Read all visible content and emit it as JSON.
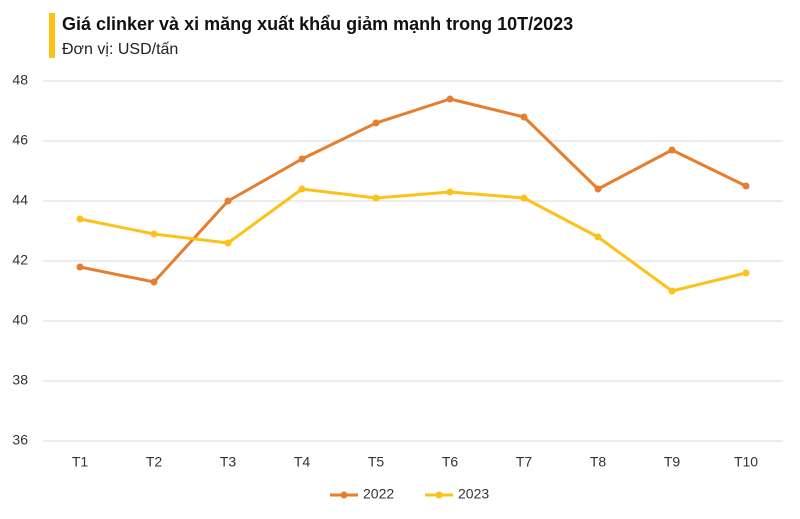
{
  "chart_data": {
    "type": "line",
    "title": "Giá clinker và xi măng xuất khẩu giảm mạnh trong 10T/2023",
    "subtitle": "Đơn vị: USD/tấn",
    "categories": [
      "T1",
      "T2",
      "T3",
      "T4",
      "T5",
      "T6",
      "T7",
      "T8",
      "T9",
      "T10"
    ],
    "series": [
      {
        "name": "2022",
        "color": "#e67e30",
        "values": [
          41.8,
          41.3,
          44.0,
          45.4,
          46.6,
          47.4,
          46.8,
          44.4,
          45.7,
          44.5
        ]
      },
      {
        "name": "2023",
        "color": "#fcc219",
        "values": [
          43.4,
          42.9,
          42.6,
          44.4,
          44.1,
          44.3,
          44.1,
          42.8,
          41.0,
          41.6
        ]
      }
    ],
    "ylim": [
      36,
      48
    ],
    "yticks": [
      36,
      38,
      40,
      42,
      44,
      46,
      48
    ],
    "grid": true,
    "legend": "bottom"
  }
}
